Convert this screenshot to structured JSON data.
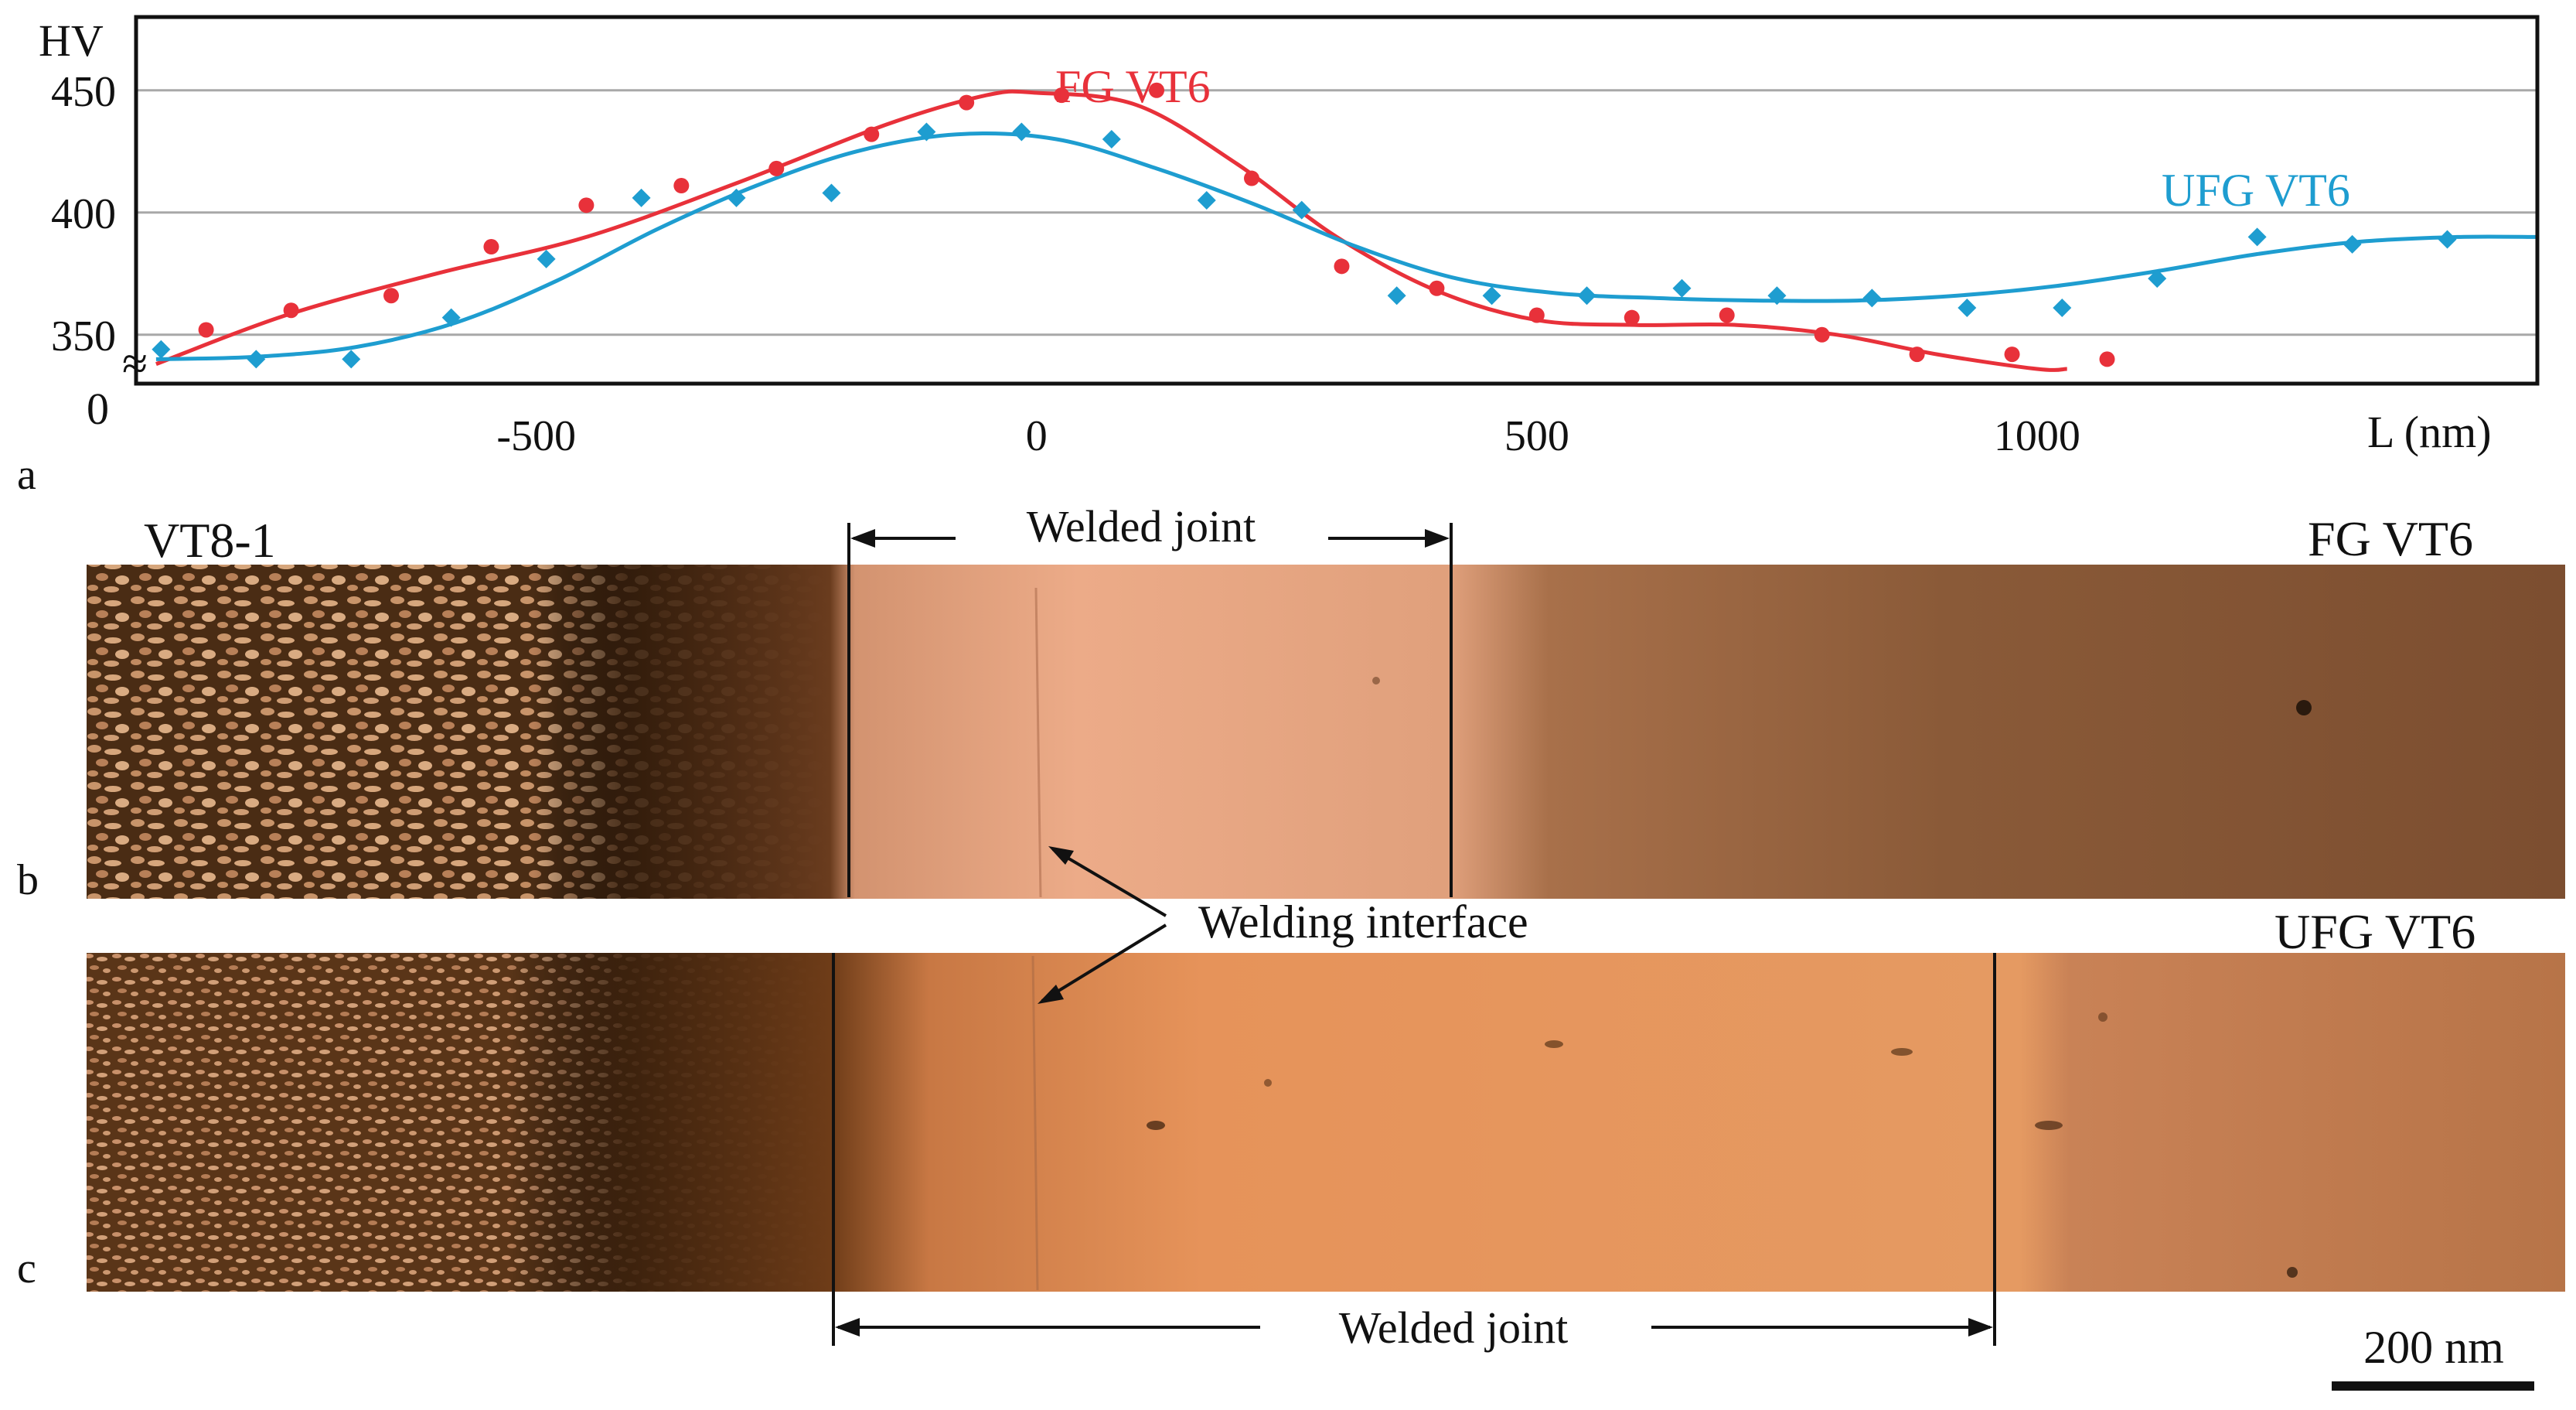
{
  "chart_data": {
    "type": "scatter",
    "title": "",
    "ylabel": "HV",
    "xlabel": "L (nm)",
    "y_origin_label": "0",
    "y_break_symbol": "≈",
    "xlim": [
      -900,
      1500
    ],
    "ylim": [
      330,
      480
    ],
    "xticks": [
      -500,
      0,
      500,
      1000
    ],
    "xtick_labels": [
      "-500",
      "0",
      "500",
      "1000"
    ],
    "yticks": [
      350,
      400,
      450
    ],
    "ytick_labels": [
      "350",
      "400",
      "450"
    ],
    "grid": true,
    "series": [
      {
        "name": "FG  VT6",
        "color": "#e8313a",
        "marker": "circle",
        "points": [
          [
            -830,
            352
          ],
          [
            -745,
            360
          ],
          [
            -645,
            366
          ],
          [
            -545,
            386
          ],
          [
            -450,
            403
          ],
          [
            -355,
            411
          ],
          [
            -260,
            418
          ],
          [
            -165,
            432
          ],
          [
            -70,
            445
          ],
          [
            25,
            448
          ],
          [
            120,
            450
          ],
          [
            215,
            414
          ],
          [
            305,
            378
          ],
          [
            400,
            369
          ],
          [
            500,
            358
          ],
          [
            595,
            357
          ],
          [
            690,
            358
          ],
          [
            785,
            350
          ],
          [
            880,
            342
          ],
          [
            975,
            342
          ],
          [
            1070,
            340
          ]
        ],
        "curve": [
          [
            -880,
            338
          ],
          [
            -750,
            358
          ],
          [
            -600,
            375
          ],
          [
            -450,
            390
          ],
          [
            -300,
            412
          ],
          [
            -150,
            436
          ],
          [
            -50,
            448
          ],
          [
            0,
            449
          ],
          [
            100,
            444
          ],
          [
            200,
            420
          ],
          [
            300,
            390
          ],
          [
            400,
            368
          ],
          [
            500,
            356
          ],
          [
            600,
            354
          ],
          [
            700,
            354
          ],
          [
            800,
            350
          ],
          [
            900,
            342
          ],
          [
            1000,
            336
          ],
          [
            1030,
            336
          ]
        ]
      },
      {
        "name": "UFG  VT6",
        "color": "#1e9dd0",
        "marker": "diamond",
        "points": [
          [
            -875,
            344
          ],
          [
            -780,
            340
          ],
          [
            -685,
            340
          ],
          [
            -585,
            357
          ],
          [
            -490,
            381
          ],
          [
            -395,
            406
          ],
          [
            -300,
            406
          ],
          [
            -205,
            408
          ],
          [
            -110,
            433
          ],
          [
            -15,
            433
          ],
          [
            75,
            430
          ],
          [
            170,
            405
          ],
          [
            265,
            401
          ],
          [
            360,
            366
          ],
          [
            455,
            366
          ],
          [
            550,
            366
          ],
          [
            645,
            369
          ],
          [
            740,
            366
          ],
          [
            835,
            365
          ],
          [
            930,
            361
          ],
          [
            1025,
            361
          ],
          [
            1120,
            373
          ],
          [
            1220,
            390
          ],
          [
            1315,
            387
          ],
          [
            1410,
            389
          ]
        ],
        "curve": [
          [
            -880,
            340
          ],
          [
            -780,
            341
          ],
          [
            -680,
            345
          ],
          [
            -580,
            355
          ],
          [
            -480,
            372
          ],
          [
            -380,
            393
          ],
          [
            -280,
            411
          ],
          [
            -180,
            425
          ],
          [
            -80,
            432
          ],
          [
            20,
            430
          ],
          [
            120,
            418
          ],
          [
            220,
            403
          ],
          [
            320,
            386
          ],
          [
            420,
            373
          ],
          [
            520,
            367
          ],
          [
            620,
            365
          ],
          [
            720,
            364
          ],
          [
            820,
            364
          ],
          [
            920,
            366
          ],
          [
            1020,
            370
          ],
          [
            1120,
            376
          ],
          [
            1220,
            383
          ],
          [
            1320,
            388
          ],
          [
            1420,
            390
          ],
          [
            1500,
            390
          ]
        ]
      }
    ]
  },
  "labels": {
    "panel_a": "a",
    "panel_b": "b",
    "panel_c": "c",
    "vt8_1": "VT8-1",
    "welded_joint_top": "Welded joint",
    "welded_joint_bottom": "Welded joint",
    "fg_vt6": "FG  VT6",
    "ufg_vt6": "UFG  VT6",
    "welding_interface": "Welding interface",
    "scale_bar": "200 nm"
  },
  "colors": {
    "fg_line": "#e8313a",
    "ufg_line": "#1e9dd0",
    "grid": "#a8a8a8",
    "micro_dark": "#3a2412",
    "micro_mid": "#7a4a28",
    "micro_light": "#e9a77a"
  }
}
